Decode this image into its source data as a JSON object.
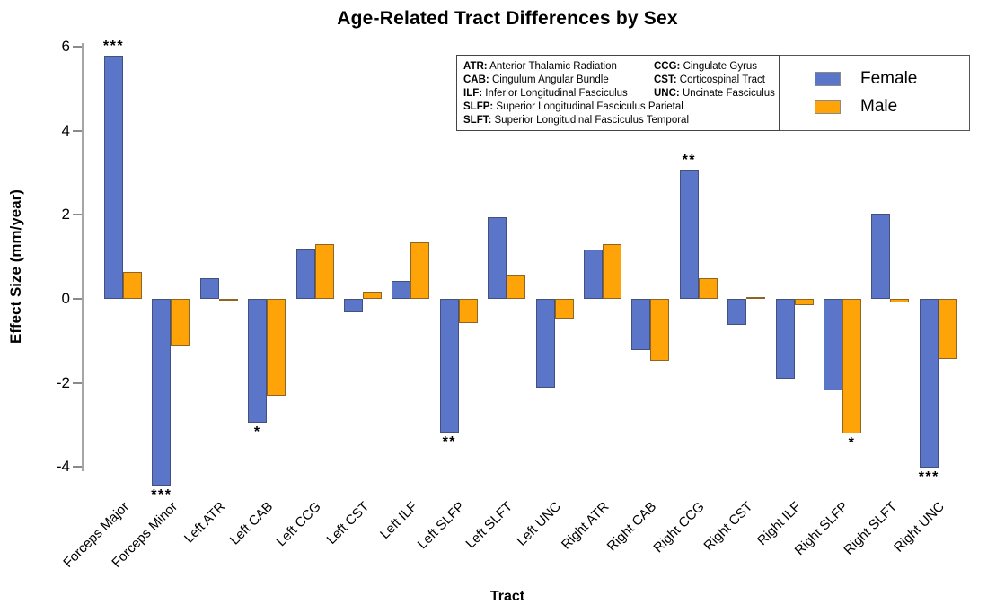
{
  "title": "Age-Related Tract Differences by Sex",
  "axes": {
    "y_label": "Effect Size (mm/year)",
    "x_label": "Tract",
    "y_ticks": [
      6,
      4,
      2,
      0,
      -2,
      -4
    ]
  },
  "legend": {
    "items": [
      {
        "label": "Female",
        "color": "#5B75C9"
      },
      {
        "label": "Male",
        "color": "#FFA408"
      }
    ]
  },
  "abbreviation_key": {
    "rows": [
      [
        {
          "abbr": "ATR",
          "name": "Anterior Thalamic Radiation"
        },
        {
          "abbr": "CCG",
          "name": "Cingulate Gyrus"
        }
      ],
      [
        {
          "abbr": "CAB",
          "name": "Cingulum Angular Bundle"
        },
        {
          "abbr": "CST",
          "name": "Corticospinal Tract"
        }
      ],
      [
        {
          "abbr": "ILF",
          "name": "Inferior Longitudinal Fasciculus"
        },
        {
          "abbr": "UNC",
          "name": "Uncinate Fasciculus"
        }
      ],
      [
        {
          "abbr": "SLFP",
          "name": "Superior Longitudinal Fasciculus Parietal"
        }
      ],
      [
        {
          "abbr": "SLFT",
          "name": "Superior Longitudinal Fasciculus Temporal"
        }
      ]
    ]
  },
  "chart_data": {
    "type": "bar",
    "title": "Age-Related Tract Differences by Sex",
    "xlabel": "Tract",
    "ylabel": "Effect Size (mm/year)",
    "ylim": [
      -4.6,
      6.2
    ],
    "yticks": [
      6,
      4,
      2,
      0,
      -2,
      -4
    ],
    "grid": false,
    "legend_position": "upper right",
    "categories": [
      "Forceps Major",
      "Forceps Minor",
      "Left ATR",
      "Left CAB",
      "Left CCG",
      "Left CST",
      "Left ILF",
      "Left SLFP",
      "Left SLFT",
      "Left UNC",
      "Right ATR",
      "Right CAB",
      "Right CCG",
      "Right CST",
      "Right ILF",
      "Right SLFP",
      "Right SLFT",
      "Right UNC"
    ],
    "series": [
      {
        "name": "Female",
        "color": "#5B75C9",
        "values": [
          5.78,
          -4.45,
          0.5,
          -2.95,
          1.2,
          -0.32,
          0.42,
          -3.18,
          1.95,
          -2.12,
          1.18,
          -1.22,
          3.08,
          -0.62,
          -1.9,
          -2.18,
          2.02,
          -4.02
        ]
      },
      {
        "name": "Male",
        "color": "#FFA408",
        "values": [
          0.65,
          -1.12,
          -0.05,
          -2.3,
          1.3,
          0.17,
          1.35,
          -0.57,
          0.58,
          -0.46,
          1.3,
          -1.48,
          0.5,
          0.05,
          -0.15,
          -3.2,
          -0.08,
          -1.44
        ]
      }
    ],
    "significance_markers": [
      {
        "category": "Forceps Major",
        "series": "Female",
        "marker": "***",
        "position": "above"
      },
      {
        "category": "Forceps Minor",
        "series": "Female",
        "marker": "***",
        "position": "below"
      },
      {
        "category": "Left CAB",
        "series": "Female",
        "marker": "*",
        "position": "below"
      },
      {
        "category": "Left SLFP",
        "series": "Female",
        "marker": "**",
        "position": "below"
      },
      {
        "category": "Right CCG",
        "series": "Female",
        "marker": "**",
        "position": "above"
      },
      {
        "category": "Right SLFP",
        "series": "Male",
        "marker": "*",
        "position": "below"
      },
      {
        "category": "Right UNC",
        "series": "Female",
        "marker": "***",
        "position": "below"
      }
    ]
  }
}
